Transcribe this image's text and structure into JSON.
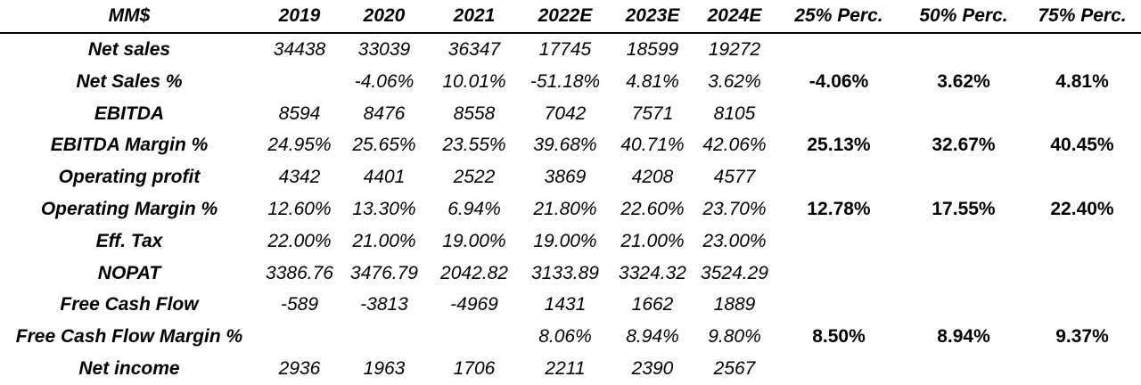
{
  "table": {
    "headers": [
      "MM$",
      "2019",
      "2020",
      "2021",
      "2022E",
      "2023E",
      "2024E",
      "25% Perc.",
      "50% Perc.",
      "75% Perc."
    ],
    "rows": [
      {
        "label": "Net sales",
        "values": [
          "34438",
          "33039",
          "36347",
          "17745",
          "18599",
          "19272"
        ],
        "percentiles": [
          "",
          "",
          ""
        ]
      },
      {
        "label": "Net Sales %",
        "values": [
          "",
          "-4.06%",
          "10.01%",
          "-51.18%",
          "4.81%",
          "3.62%"
        ],
        "percentiles": [
          "-4.06%",
          "3.62%",
          "4.81%"
        ]
      },
      {
        "label": "EBITDA",
        "values": [
          "8594",
          "8476",
          "8558",
          "7042",
          "7571",
          "8105"
        ],
        "percentiles": [
          "",
          "",
          ""
        ]
      },
      {
        "label": "EBITDA Margin %",
        "values": [
          "24.95%",
          "25.65%",
          "23.55%",
          "39.68%",
          "40.71%",
          "42.06%"
        ],
        "percentiles": [
          "25.13%",
          "32.67%",
          "40.45%"
        ]
      },
      {
        "label": "Operating profit",
        "values": [
          "4342",
          "4401",
          "2522",
          "3869",
          "4208",
          "4577"
        ],
        "percentiles": [
          "",
          "",
          ""
        ]
      },
      {
        "label": "Operating Margin %",
        "values": [
          "12.60%",
          "13.30%",
          "6.94%",
          "21.80%",
          "22.60%",
          "23.70%"
        ],
        "percentiles": [
          "12.78%",
          "17.55%",
          "22.40%"
        ]
      },
      {
        "label": "Eff. Tax",
        "values": [
          "22.00%",
          "21.00%",
          "19.00%",
          "19.00%",
          "21.00%",
          "23.00%"
        ],
        "percentiles": [
          "",
          "",
          ""
        ]
      },
      {
        "label": "NOPAT",
        "values": [
          "3386.76",
          "3476.79",
          "2042.82",
          "3133.89",
          "3324.32",
          "3524.29"
        ],
        "percentiles": [
          "",
          "",
          ""
        ]
      },
      {
        "label": "Free Cash Flow",
        "values": [
          "-589",
          "-3813",
          "-4969",
          "1431",
          "1662",
          "1889"
        ],
        "percentiles": [
          "",
          "",
          ""
        ]
      },
      {
        "label": "Free Cash Flow Margin %",
        "values": [
          "",
          "",
          "",
          "8.06%",
          "8.94%",
          "9.80%"
        ],
        "percentiles": [
          "8.50%",
          "8.94%",
          "9.37%"
        ]
      },
      {
        "label": "Net income",
        "values": [
          "2936",
          "1963",
          "1706",
          "2211",
          "2390",
          "2567"
        ],
        "percentiles": [
          "",
          "",
          ""
        ]
      }
    ]
  }
}
